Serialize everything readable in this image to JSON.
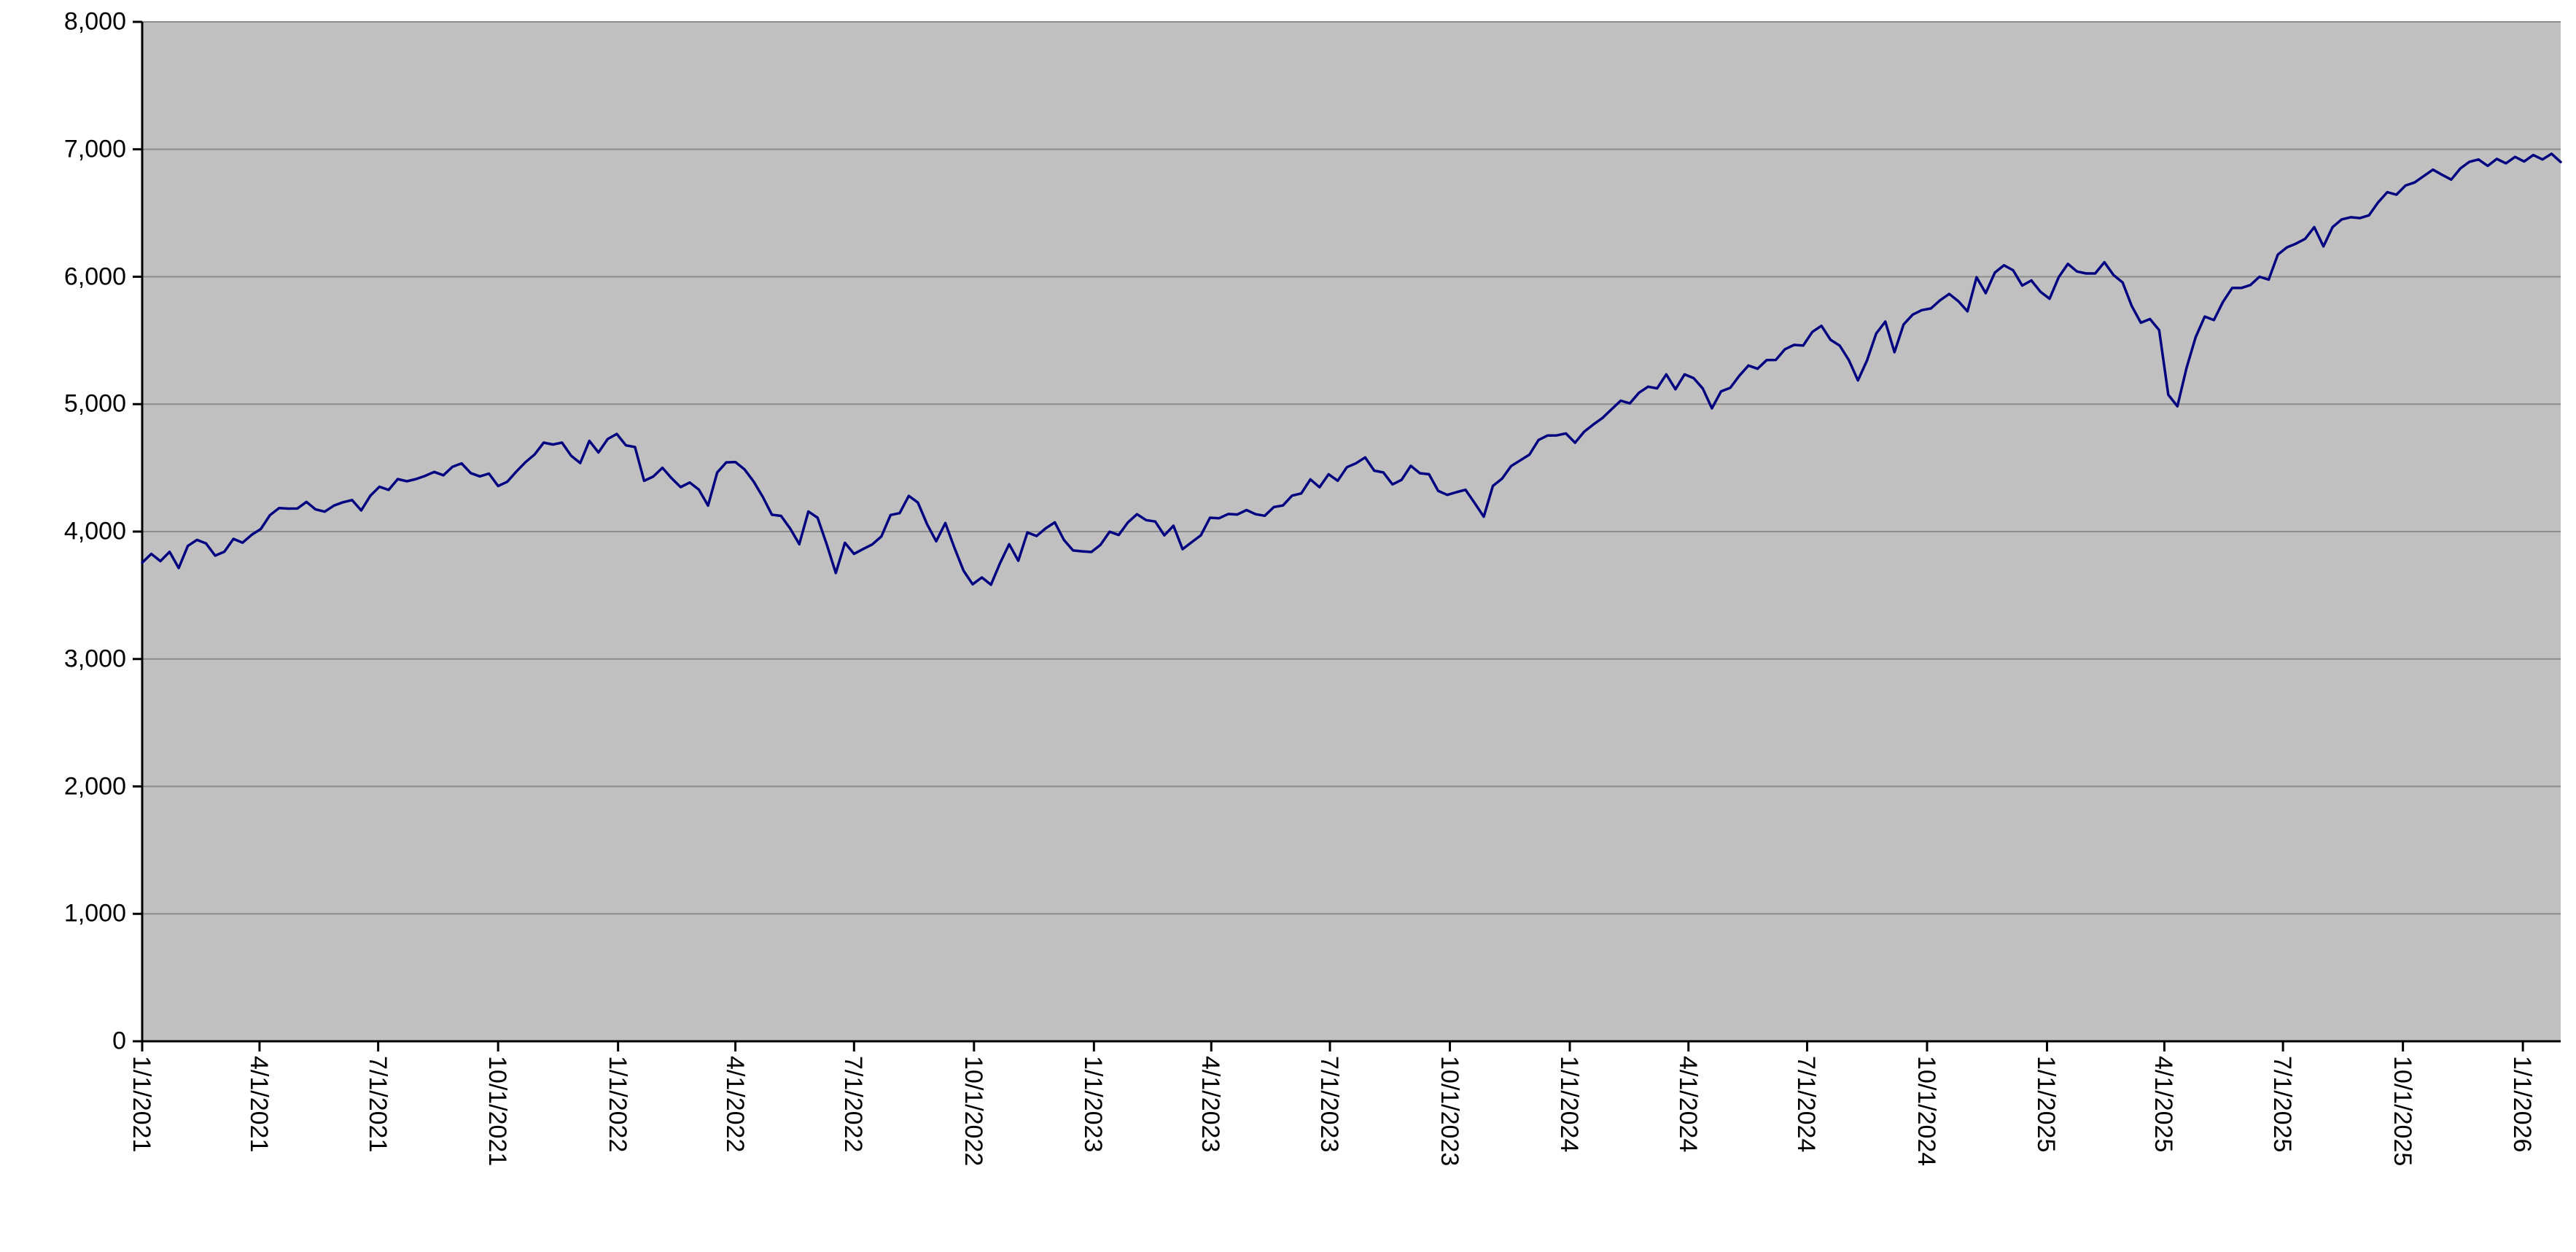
{
  "chart_data": {
    "type": "line",
    "title": "",
    "series_name": "index-price-series",
    "line_color": "#000080",
    "plot_bg_color": "#c0c0c0",
    "grid_color": "#8c8c8c",
    "axis_color": "#000000",
    "page_bg_color": "#ffffff",
    "legend": "none",
    "grid": "horizontal",
    "ylim": [
      0,
      8000
    ],
    "y_ticks": [
      0,
      1000,
      2000,
      3000,
      4000,
      5000,
      6000,
      7000,
      8000
    ],
    "y_tick_labels": [
      "0",
      "1,000",
      "2,000",
      "3,000",
      "4,000",
      "5,000",
      "6,000",
      "7,000",
      "8,000"
    ],
    "x_start_date": "1/1/2021",
    "x_interval_days": 7,
    "x_tick_labels": [
      "1/1/2021",
      "4/1/2021",
      "7/1/2021",
      "10/1/2021",
      "1/1/2022",
      "4/1/2022",
      "7/1/2022",
      "10/1/2022",
      "1/1/2023",
      "4/1/2023",
      "7/1/2023",
      "10/1/2023",
      "1/1/2024",
      "4/1/2024",
      "7/1/2024",
      "10/1/2024",
      "1/1/2025",
      "4/1/2025",
      "7/1/2025",
      "10/1/2025",
      "1/1/2026"
    ],
    "values": [
      3756,
      3825,
      3768,
      3841,
      3714,
      3887,
      3935,
      3907,
      3811,
      3842,
      3943,
      3913,
      3975,
      4020,
      4129,
      4185,
      4180,
      4181,
      4233,
      4174,
      4156,
      4204,
      4230,
      4247,
      4166,
      4281,
      4352,
      4327,
      4412,
      4395,
      4412,
      4437,
      4468,
      4442,
      4509,
      4535,
      4459,
      4433,
      4455,
      4357,
      4391,
      4471,
      4545,
      4605,
      4698,
      4683,
      4698,
      4595,
      4538,
      4712,
      4621,
      4726,
      4766,
      4677,
      4663,
      4398,
      4432,
      4501,
      4419,
      4349,
      4385,
      4329,
      4204,
      4463,
      4543,
      4546,
      4488,
      4393,
      4272,
      4132,
      4123,
      4024,
      3901,
      4158,
      4109,
      3901,
      3675,
      3912,
      3825,
      3863,
      3899,
      3962,
      4130,
      4145,
      4280,
      4228,
      4058,
      3924,
      4067,
      3873,
      3693,
      3586,
      3640,
      3583,
      3753,
      3901,
      3771,
      3993,
      3965,
      4026,
      4072,
      3934,
      3852,
      3845,
      3840,
      3895,
      3999,
      3973,
      4071,
      4136,
      4090,
      4079,
      3970,
      4046,
      3862,
      3917,
      3971,
      4109,
      4105,
      4138,
      4134,
      4169,
      4136,
      4124,
      4192,
      4205,
      4282,
      4299,
      4410,
      4348,
      4450,
      4399,
      4505,
      4536,
      4582,
      4478,
      4464,
      4370,
      4406,
      4516,
      4458,
      4450,
      4320,
      4288,
      4309,
      4328,
      4224,
      4117,
      4358,
      4415,
      4514,
      4559,
      4604,
      4719,
      4754,
      4755,
      4770,
      4697,
      4784,
      4840,
      4891,
      4959,
      5027,
      5006,
      5089,
      5137,
      5124,
      5234,
      5117,
      5234,
      5204,
      5123,
      4967,
      5100,
      5128,
      5223,
      5303,
      5278,
      5346,
      5347,
      5431,
      5465,
      5460,
      5567,
      5615,
      5505,
      5459,
      5346,
      5186,
      5344,
      5554,
      5648,
      5408,
      5626,
      5703,
      5738,
      5751,
      5815,
      5865,
      5808,
      5729,
      5996,
      5871,
      6032,
      6090,
      6051,
      5931,
      5971,
      5882,
      5827,
      5997,
      6101,
      6041,
      6026,
      6026,
      6114,
      6013,
      5955,
      5770,
      5639,
      5668,
      5581,
      5074,
      4983,
      5283,
      5525,
      5687,
      5660,
      5803,
      5912,
      5912,
      5935,
      6000,
      5977,
      6173,
      6230,
      6260,
      6297,
      6389,
      6238,
      6389,
      6450,
      6467,
      6460,
      6482,
      6584,
      6664,
      6644,
      6716,
      6740,
      6790,
      6840,
      6800,
      6762,
      6849,
      6902,
      6920,
      6870,
      6925,
      6890,
      6940,
      6905,
      6955,
      6920,
      6965,
      6900
    ]
  }
}
